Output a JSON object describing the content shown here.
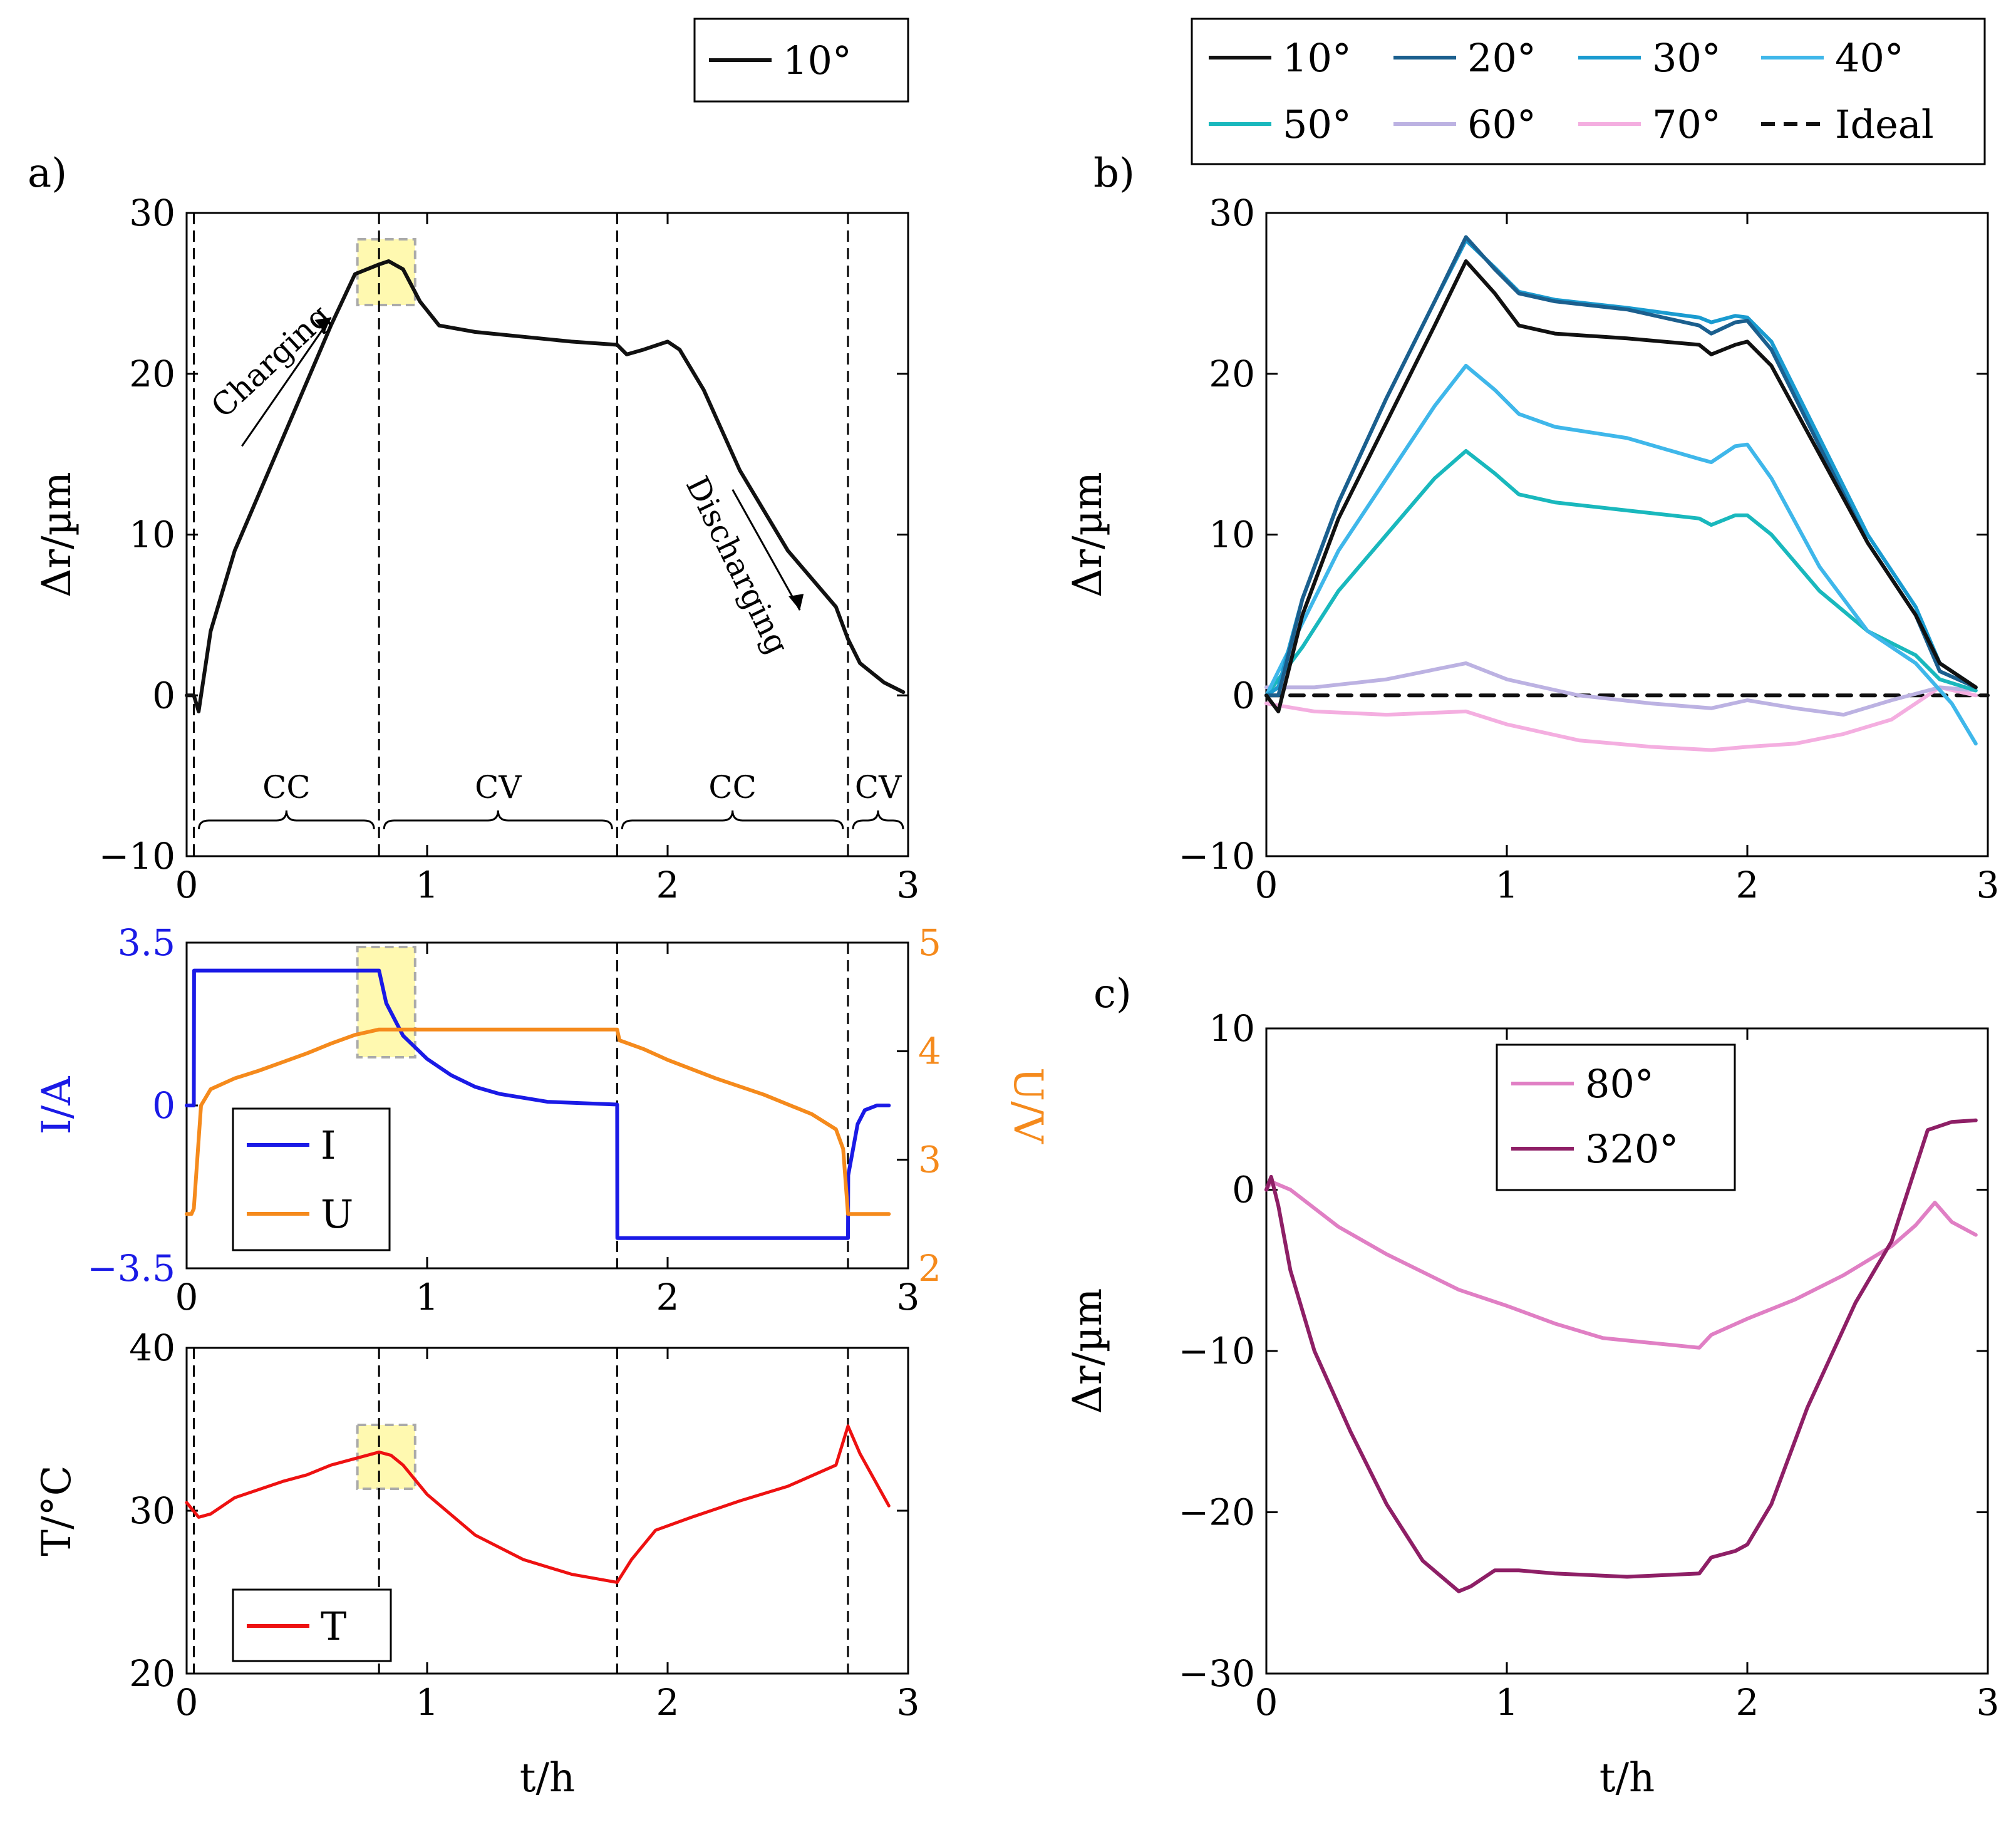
{
  "panel_labels": {
    "a": "a)",
    "b": "b)",
    "c": "c)"
  },
  "phase_labels": [
    "CC",
    "CV",
    "CC",
    "CV"
  ],
  "annotations": {
    "charging": "Charging",
    "discharging": "Discharging"
  },
  "colors": {
    "c10": "#111111",
    "c20": "#1b5f8e",
    "c30": "#1a9bd0",
    "c40": "#3fb7ea",
    "c50": "#19b8bd",
    "c60": "#bcb2e2",
    "c70": "#f4aee0",
    "ideal": "#111111",
    "current": "#1a1ae6",
    "voltage": "#f58a1c",
    "temperature": "#ee1111",
    "c80": "#e07fc4",
    "c320": "#8e1f66",
    "highlight": "#fff9b0"
  },
  "chart_data": [
    {
      "id": "a-top",
      "type": "line",
      "title": "",
      "xlabel": "",
      "ylabel": "Δr/µm",
      "xlim": [
        0,
        3
      ],
      "ylim": [
        -10,
        30
      ],
      "xticks": [
        "0",
        "1",
        "2",
        "3"
      ],
      "yticks": [
        "−10",
        "0",
        "10",
        "20",
        "30"
      ],
      "legend": {
        "position": "top-right",
        "entries": [
          "10°"
        ]
      },
      "phase_boundaries_h": [
        0.03,
        0.8,
        1.79,
        2.75
      ],
      "series": [
        {
          "name": "10°",
          "color_key": "c10",
          "x": [
            0,
            0.03,
            0.05,
            0.1,
            0.2,
            0.3,
            0.4,
            0.5,
            0.6,
            0.7,
            0.8,
            0.84,
            0.9,
            0.97,
            1.05,
            1.2,
            1.4,
            1.6,
            1.79,
            1.83,
            1.9,
            2.0,
            2.05,
            2.15,
            2.3,
            2.5,
            2.7,
            2.75,
            2.8,
            2.9,
            2.98
          ],
          "y": [
            0,
            0,
            -1,
            4,
            9,
            12.5,
            16,
            19.5,
            23,
            26.2,
            26.8,
            27,
            26.5,
            24.5,
            23,
            22.6,
            22.3,
            22,
            21.8,
            21.2,
            21.5,
            22,
            21.5,
            19,
            14,
            9,
            5.5,
            3.5,
            2,
            0.8,
            0.2
          ]
        }
      ]
    },
    {
      "id": "a-mid",
      "type": "line",
      "xlabel": "",
      "ylabel_left": "I/A",
      "ylabel_right": "U/V",
      "xlim": [
        0,
        3
      ],
      "ylim_left": [
        -3.5,
        3.5
      ],
      "ylim_right": [
        2,
        5
      ],
      "xticks": [
        "0",
        "1",
        "2",
        "3"
      ],
      "yticks_left": [
        "−3.5",
        "0",
        "3.5"
      ],
      "yticks_right": [
        "2",
        "3",
        "4",
        "5"
      ],
      "legend": {
        "position": "bottom-left",
        "entries": [
          "I",
          "U"
        ]
      },
      "series": [
        {
          "name": "I",
          "axis": "left",
          "color_key": "current",
          "x": [
            0,
            0.02,
            0.03,
            0.031,
            0.8,
            0.83,
            0.9,
            1.0,
            1.1,
            1.2,
            1.3,
            1.5,
            1.79,
            1.791,
            2.75,
            2.751,
            2.79,
            2.82,
            2.87,
            2.92
          ],
          "y": [
            0,
            0,
            0,
            2.9,
            2.9,
            2.2,
            1.5,
            1.0,
            0.65,
            0.4,
            0.25,
            0.08,
            0.02,
            -2.85,
            -2.85,
            -1.5,
            -0.4,
            -0.1,
            0,
            0
          ]
        },
        {
          "name": "U",
          "axis": "right",
          "color_key": "voltage",
          "x": [
            0,
            0.02,
            0.03,
            0.06,
            0.1,
            0.2,
            0.3,
            0.4,
            0.5,
            0.6,
            0.7,
            0.8,
            1.0,
            1.5,
            1.79,
            1.8,
            1.9,
            2.0,
            2.2,
            2.4,
            2.6,
            2.7,
            2.73,
            2.75,
            2.8,
            2.92
          ],
          "y": [
            2.5,
            2.5,
            2.55,
            3.5,
            3.65,
            3.75,
            3.82,
            3.9,
            3.98,
            4.07,
            4.15,
            4.2,
            4.2,
            4.2,
            4.2,
            4.1,
            4.02,
            3.92,
            3.75,
            3.6,
            3.42,
            3.28,
            3.1,
            2.5,
            2.5,
            2.5
          ]
        }
      ]
    },
    {
      "id": "a-bottom",
      "type": "line",
      "xlabel": "t/h",
      "ylabel": "T/°C",
      "xlim": [
        0,
        3
      ],
      "ylim": [
        20,
        40
      ],
      "xticks": [
        "0",
        "1",
        "2",
        "3"
      ],
      "yticks": [
        "20",
        "30",
        "40"
      ],
      "legend": {
        "position": "bottom-left",
        "entries": [
          "T"
        ]
      },
      "series": [
        {
          "name": "T",
          "color_key": "temperature",
          "x": [
            0,
            0.05,
            0.1,
            0.2,
            0.3,
            0.4,
            0.5,
            0.6,
            0.7,
            0.8,
            0.85,
            0.9,
            1.0,
            1.2,
            1.4,
            1.6,
            1.79,
            1.85,
            1.95,
            2.1,
            2.3,
            2.5,
            2.7,
            2.75,
            2.8,
            2.92
          ],
          "y": [
            30.5,
            29.6,
            29.8,
            30.8,
            31.3,
            31.8,
            32.2,
            32.8,
            33.2,
            33.6,
            33.4,
            32.8,
            31.0,
            28.5,
            27.0,
            26.1,
            25.6,
            27.0,
            28.8,
            29.6,
            30.6,
            31.5,
            32.8,
            35.2,
            33.5,
            30.3
          ]
        }
      ]
    },
    {
      "id": "b",
      "type": "line",
      "xlabel": "",
      "ylabel": "Δr/µm",
      "xlim": [
        0,
        3
      ],
      "ylim": [
        -10,
        30
      ],
      "xticks": [
        "0",
        "1",
        "2",
        "3"
      ],
      "yticks": [
        "−10",
        "0",
        "10",
        "20",
        "30"
      ],
      "legend": {
        "position": "top",
        "entries": [
          "10°",
          "20°",
          "30°",
          "40°",
          "50°",
          "60°",
          "70°",
          "Ideal"
        ]
      },
      "series": [
        {
          "name": "10°",
          "color_key": "c10",
          "x": [
            0,
            0.05,
            0.15,
            0.3,
            0.5,
            0.7,
            0.83,
            0.95,
            1.05,
            1.2,
            1.5,
            1.8,
            1.85,
            1.95,
            2.0,
            2.1,
            2.3,
            2.5,
            2.7,
            2.8,
            2.95
          ],
          "y": [
            0,
            -1,
            5,
            11,
            17,
            23,
            27,
            25,
            23,
            22.5,
            22.2,
            21.8,
            21.2,
            21.8,
            22,
            20.5,
            15,
            9.5,
            5,
            2,
            0.5
          ]
        },
        {
          "name": "20°",
          "color_key": "c20",
          "x": [
            0,
            0.05,
            0.15,
            0.3,
            0.5,
            0.7,
            0.83,
            0.95,
            1.05,
            1.2,
            1.5,
            1.8,
            1.85,
            1.95,
            2.0,
            2.1,
            2.3,
            2.5,
            2.7,
            2.8,
            2.95
          ],
          "y": [
            0,
            0,
            6,
            12,
            18.5,
            24.5,
            28.5,
            26.5,
            25,
            24.5,
            24,
            23,
            22.5,
            23.2,
            23.3,
            21.5,
            15.5,
            9.5,
            5,
            1.5,
            0.5
          ]
        },
        {
          "name": "30°",
          "color_key": "c30",
          "x": [
            0,
            0.05,
            0.15,
            0.3,
            0.5,
            0.7,
            0.83,
            0.95,
            1.05,
            1.2,
            1.5,
            1.8,
            1.85,
            1.95,
            2.0,
            2.1,
            2.3,
            2.5,
            2.7,
            2.8,
            2.95
          ],
          "y": [
            0,
            0.5,
            6,
            12,
            18.5,
            24.5,
            28.3,
            26.6,
            25.1,
            24.6,
            24.1,
            23.5,
            23.2,
            23.6,
            23.5,
            22,
            16,
            10,
            5.5,
            2,
            0.5
          ]
        },
        {
          "name": "40°",
          "color_key": "c40",
          "x": [
            0,
            0.05,
            0.15,
            0.3,
            0.5,
            0.7,
            0.83,
            0.95,
            1.05,
            1.2,
            1.5,
            1.8,
            1.85,
            1.95,
            2.0,
            2.1,
            2.3,
            2.5,
            2.7,
            2.85,
            2.95
          ],
          "y": [
            0,
            1.5,
            4.5,
            9,
            13.5,
            18,
            20.5,
            19,
            17.5,
            16.7,
            16,
            14.7,
            14.5,
            15.5,
            15.6,
            13.5,
            8,
            4,
            2,
            -0.5,
            -3
          ]
        },
        {
          "name": "50°",
          "color_key": "c50",
          "x": [
            0,
            0.05,
            0.15,
            0.3,
            0.5,
            0.7,
            0.83,
            0.95,
            1.05,
            1.2,
            1.5,
            1.8,
            1.85,
            1.95,
            2.0,
            2.1,
            2.3,
            2.5,
            2.7,
            2.8,
            2.95
          ],
          "y": [
            0,
            1,
            3,
            6.5,
            10,
            13.5,
            15.2,
            13.8,
            12.5,
            12,
            11.5,
            11,
            10.6,
            11.2,
            11.2,
            10,
            6.5,
            4,
            2.5,
            1,
            0.3
          ]
        },
        {
          "name": "60°",
          "color_key": "c60",
          "x": [
            0,
            0.2,
            0.5,
            0.83,
            1.0,
            1.3,
            1.6,
            1.85,
            2.0,
            2.2,
            2.4,
            2.6,
            2.8,
            2.95
          ],
          "y": [
            0.5,
            0.5,
            1,
            2,
            1,
            0,
            -0.5,
            -0.8,
            -0.3,
            -0.8,
            -1.2,
            -0.3,
            0.5,
            0.3
          ]
        },
        {
          "name": "70°",
          "color_key": "c70",
          "x": [
            0,
            0.2,
            0.5,
            0.83,
            1.0,
            1.3,
            1.6,
            1.85,
            2.0,
            2.2,
            2.4,
            2.6,
            2.8,
            2.95
          ],
          "y": [
            -0.5,
            -1,
            -1.2,
            -1,
            -1.8,
            -2.8,
            -3.2,
            -3.4,
            -3.2,
            -3,
            -2.4,
            -1.5,
            0.5,
            0
          ]
        },
        {
          "name": "Ideal",
          "color_key": "ideal",
          "dashed": true,
          "x": [
            0,
            3
          ],
          "y": [
            0,
            0
          ]
        }
      ]
    },
    {
      "id": "c",
      "type": "line",
      "xlabel": "t/h",
      "ylabel": "Δr/µm",
      "xlim": [
        0,
        3
      ],
      "ylim": [
        -30,
        10
      ],
      "xticks": [
        "0",
        "1",
        "2",
        "3"
      ],
      "yticks": [
        "−30",
        "−20",
        "−10",
        "0",
        "10"
      ],
      "legend": {
        "position": "top-center",
        "entries": [
          "80°",
          "320°"
        ]
      },
      "series": [
        {
          "name": "80°",
          "color_key": "c80",
          "x": [
            0,
            0.02,
            0.1,
            0.3,
            0.5,
            0.8,
            1.0,
            1.2,
            1.4,
            1.6,
            1.8,
            1.85,
            2.0,
            2.2,
            2.4,
            2.6,
            2.7,
            2.78,
            2.85,
            2.95
          ],
          "y": [
            0,
            0.5,
            0,
            -2.3,
            -4,
            -6.2,
            -7.2,
            -8.3,
            -9.2,
            -9.5,
            -9.8,
            -9,
            -8,
            -6.8,
            -5.3,
            -3.5,
            -2.2,
            -0.8,
            -2,
            -2.8
          ]
        },
        {
          "name": "320°",
          "color_key": "c320",
          "x": [
            0,
            0.02,
            0.05,
            0.1,
            0.2,
            0.35,
            0.5,
            0.65,
            0.8,
            0.85,
            0.95,
            1.05,
            1.2,
            1.5,
            1.8,
            1.85,
            1.95,
            2.0,
            2.1,
            2.25,
            2.45,
            2.6,
            2.75,
            2.85,
            2.95
          ],
          "y": [
            0,
            0.8,
            -1,
            -5,
            -10,
            -15,
            -19.5,
            -23,
            -24.9,
            -24.6,
            -23.6,
            -23.6,
            -23.8,
            -24,
            -23.8,
            -22.8,
            -22.4,
            -22,
            -19.5,
            -13.5,
            -7,
            -3.2,
            3.7,
            4.2,
            4.3
          ]
        }
      ]
    }
  ]
}
